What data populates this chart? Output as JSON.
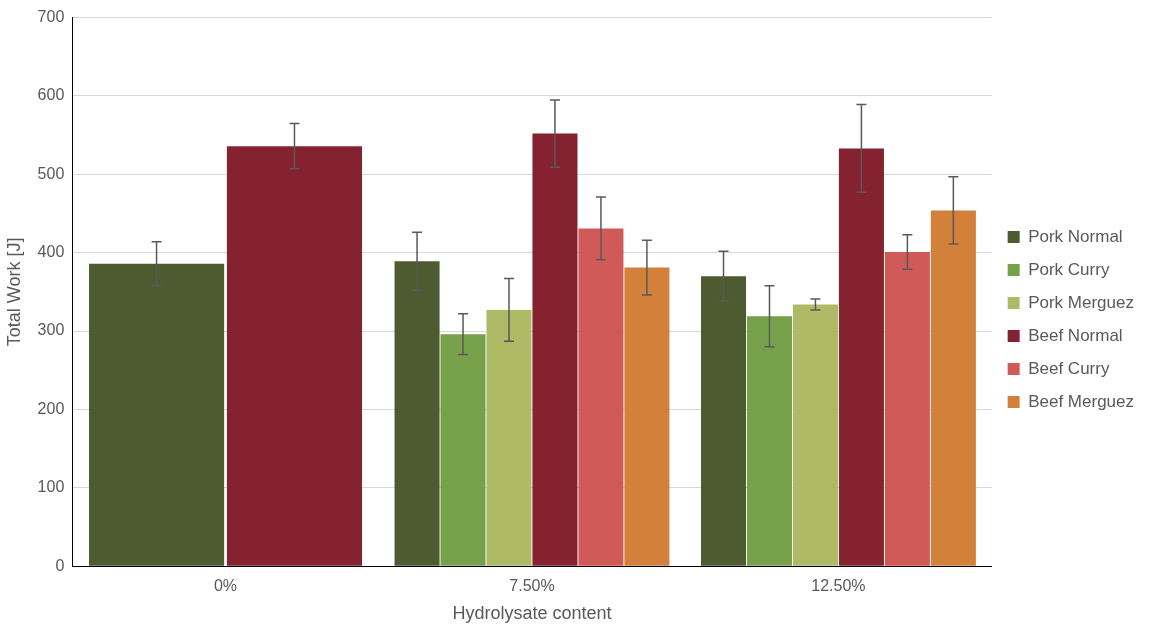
{
  "chart_data": {
    "type": "bar",
    "xlabel": "Hydrolysate content",
    "ylabel": "Total Work [J]",
    "categories": [
      "0%",
      "7.50%",
      "12.50%"
    ],
    "series": [
      {
        "name": "Pork Normal",
        "color": "#4e5b31",
        "values": [
          386,
          389,
          370
        ],
        "errors": [
          28,
          37,
          32
        ]
      },
      {
        "name": "Pork Curry",
        "color": "#77a04a",
        "values": [
          null,
          296,
          319
        ],
        "errors": [
          null,
          26,
          39
        ]
      },
      {
        "name": "Pork Merguez",
        "color": "#afba66",
        "values": [
          null,
          327,
          334
        ],
        "errors": [
          null,
          40,
          7
        ]
      },
      {
        "name": "Beef Normal",
        "color": "#84232f",
        "values": [
          536,
          552,
          533
        ],
        "errors": [
          29,
          43,
          56
        ]
      },
      {
        "name": "Beef Curry",
        "color": "#d05a58",
        "values": [
          null,
          431,
          401
        ],
        "errors": [
          null,
          40,
          22
        ]
      },
      {
        "name": "Beef Merguez",
        "color": "#d2803a",
        "values": [
          null,
          381,
          454
        ],
        "errors": [
          null,
          35,
          43
        ]
      }
    ],
    "ylim": [
      0,
      700
    ],
    "yticks": [
      0,
      100,
      200,
      300,
      400,
      500,
      600,
      700
    ],
    "grid": "y",
    "legend": "right"
  }
}
